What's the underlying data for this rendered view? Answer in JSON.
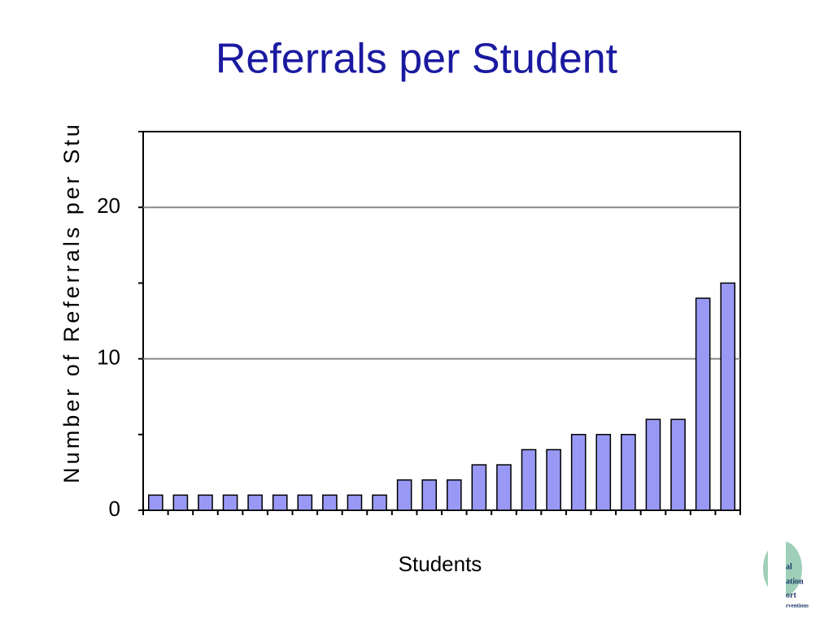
{
  "chart_data": {
    "type": "bar",
    "title": "Referrals per Student",
    "x_label": "Students",
    "y_label": "Number of Referrals per Stu",
    "categories": [
      null,
      null,
      null,
      null,
      null,
      null,
      null,
      null,
      null,
      null,
      null,
      null,
      null,
      null,
      null,
      null,
      null,
      null,
      null,
      null,
      null,
      null,
      null,
      null
    ],
    "values": [
      1,
      1,
      1,
      1,
      1,
      1,
      1,
      1,
      1,
      1,
      2,
      2,
      2,
      3,
      3,
      4,
      4,
      5,
      5,
      5,
      6,
      6,
      14,
      15
    ],
    "color": "#9999f5",
    "ylim": [
      0,
      25
    ],
    "yticks": [
      0,
      10,
      20
    ],
    "y_minor_ticks": [
      5,
      15,
      25
    ],
    "grid": true
  },
  "logo": [
    "al",
    "ation",
    "ort",
    "rventions"
  ]
}
